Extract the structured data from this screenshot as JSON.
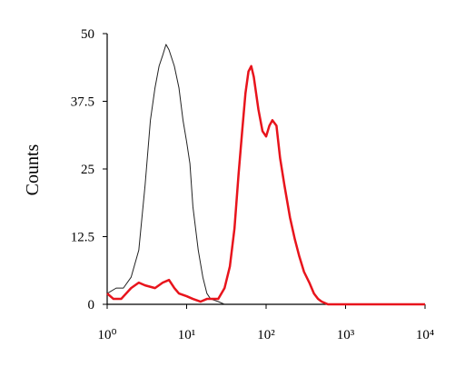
{
  "chart_data": {
    "type": "line",
    "ylabel": "Counts",
    "xscale": "log",
    "xlim": [
      1,
      10000
    ],
    "xticks": [
      {
        "value": 1,
        "label": "10⁰"
      },
      {
        "value": 10,
        "label": "10¹"
      },
      {
        "value": 100,
        "label": "10²"
      },
      {
        "value": 1000,
        "label": "10³"
      },
      {
        "value": 10000,
        "label": "10⁴"
      }
    ],
    "ylim": [
      0,
      50
    ],
    "yticks": [
      0,
      12.5,
      25,
      37.5,
      50
    ],
    "grid": false,
    "series": [
      {
        "color": "#222222",
        "width": 1,
        "x": [
          1,
          1.3,
          1.6,
          2,
          2.5,
          3,
          3.5,
          4,
          4.5,
          5,
          5.5,
          6,
          7,
          8,
          9,
          10,
          11,
          12,
          14,
          16,
          18,
          20,
          25,
          30
        ],
        "values": [
          2,
          3,
          3,
          5,
          10,
          22,
          34,
          40,
          44,
          46,
          48,
          47,
          44,
          40,
          34,
          30,
          26,
          18,
          10,
          5,
          2,
          1,
          0.5,
          0
        ]
      },
      {
        "color": "#e8141c",
        "width": 2.5,
        "x": [
          1,
          1.2,
          1.5,
          2,
          2.5,
          3,
          4,
          5,
          6,
          7,
          8,
          10,
          12,
          15,
          18,
          22,
          25,
          30,
          35,
          40,
          45,
          50,
          55,
          60,
          65,
          70,
          80,
          90,
          100,
          110,
          120,
          135,
          150,
          170,
          200,
          230,
          260,
          300,
          350,
          400,
          450,
          500,
          600,
          1000,
          3000,
          10000
        ],
        "values": [
          2,
          1,
          1,
          3,
          4,
          3.5,
          3,
          4,
          4.5,
          3,
          2,
          1.5,
          1,
          0.5,
          1,
          1,
          1,
          3,
          7,
          14,
          24,
          32,
          39,
          43,
          44,
          42,
          36,
          32,
          31,
          33,
          34,
          33,
          27,
          22,
          16,
          12,
          9,
          6,
          4,
          2,
          1,
          0.5,
          0,
          0,
          0,
          0
        ]
      }
    ]
  }
}
